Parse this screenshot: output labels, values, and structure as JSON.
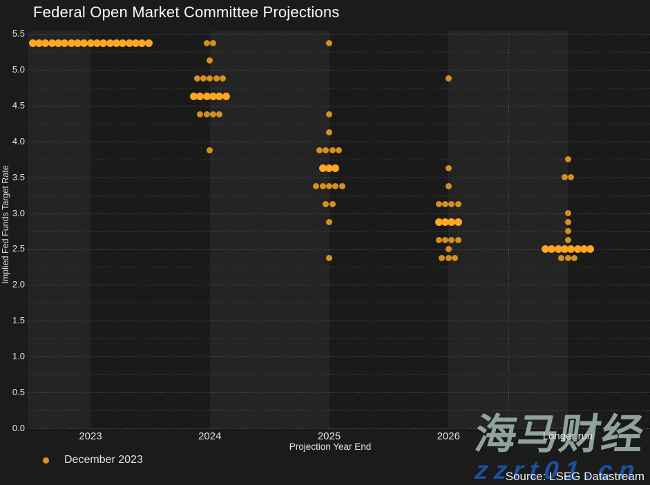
{
  "title": "Federal Open Market Committee Projections",
  "source": "Source: LSEG Datastream",
  "legend": {
    "label": "December 2023",
    "marker_color": "#dd9021"
  },
  "watermark": {
    "cn_text": "海马财经",
    "url_text": "zzrt01.cn",
    "cn_color": "#8fa39a",
    "url_color": "#1d4fa3"
  },
  "colors": {
    "background": "#1b1b1b",
    "band_light": "#242424",
    "band_dark": "#1a1a1a",
    "dot_normal": "#d6901f",
    "dot_median": "#ffa71e",
    "text": "#e6e6e6"
  },
  "chart_data": {
    "type": "scatter",
    "title": "Federal Open Market Committee Projections",
    "xlabel": "Projection Year End",
    "ylabel": "Implied Fed Funds Target Rate",
    "categories": [
      "2023",
      "2024",
      "2025",
      "2026",
      "Longer run"
    ],
    "ylim": [
      0.0,
      5.5
    ],
    "ytick_step": 0.5,
    "grid_step": 0.25,
    "ytick_labels": [
      "0.0",
      "0.5",
      "1.0",
      "1.5",
      "2.0",
      "2.5",
      "3.0",
      "3.5",
      "4.0",
      "4.5",
      "5.0",
      "5.5"
    ],
    "grid": true,
    "legend_position": "bottom-left",
    "separator_between": [
      "2026",
      "Longer run"
    ],
    "series": [
      {
        "name": "December 2023",
        "points": [
          {
            "category": "2023",
            "value": 5.375,
            "count": 19,
            "median": true
          },
          {
            "category": "2024",
            "value": 5.375,
            "count": 2
          },
          {
            "category": "2024",
            "value": 5.125,
            "count": 1
          },
          {
            "category": "2024",
            "value": 4.875,
            "count": 5
          },
          {
            "category": "2024",
            "value": 4.625,
            "count": 6,
            "median": true
          },
          {
            "category": "2024",
            "value": 4.375,
            "count": 4
          },
          {
            "category": "2024",
            "value": 3.875,
            "count": 1
          },
          {
            "category": "2025",
            "value": 5.375,
            "count": 1
          },
          {
            "category": "2025",
            "value": 4.375,
            "count": 1
          },
          {
            "category": "2025",
            "value": 4.125,
            "count": 1
          },
          {
            "category": "2025",
            "value": 3.875,
            "count": 4
          },
          {
            "category": "2025",
            "value": 3.625,
            "count": 3,
            "median": true
          },
          {
            "category": "2025",
            "value": 3.375,
            "count": 5
          },
          {
            "category": "2025",
            "value": 3.125,
            "count": 2
          },
          {
            "category": "2025",
            "value": 2.875,
            "count": 1
          },
          {
            "category": "2025",
            "value": 2.375,
            "count": 1
          },
          {
            "category": "2026",
            "value": 4.875,
            "count": 1
          },
          {
            "category": "2026",
            "value": 3.625,
            "count": 1
          },
          {
            "category": "2026",
            "value": 3.375,
            "count": 1
          },
          {
            "category": "2026",
            "value": 3.125,
            "count": 4
          },
          {
            "category": "2026",
            "value": 2.875,
            "count": 4,
            "median": true
          },
          {
            "category": "2026",
            "value": 2.625,
            "count": 4
          },
          {
            "category": "2026",
            "value": 2.5,
            "count": 1
          },
          {
            "category": "2026",
            "value": 2.375,
            "count": 3
          },
          {
            "category": "Longer run",
            "value": 3.75,
            "count": 1
          },
          {
            "category": "Longer run",
            "value": 3.5,
            "count": 2
          },
          {
            "category": "Longer run",
            "value": 3.0,
            "count": 1
          },
          {
            "category": "Longer run",
            "value": 2.875,
            "count": 1
          },
          {
            "category": "Longer run",
            "value": 2.75,
            "count": 1
          },
          {
            "category": "Longer run",
            "value": 2.625,
            "count": 1
          },
          {
            "category": "Longer run",
            "value": 2.5,
            "count": 8,
            "median": true
          },
          {
            "category": "Longer run",
            "value": 2.375,
            "count": 3
          }
        ]
      }
    ]
  }
}
